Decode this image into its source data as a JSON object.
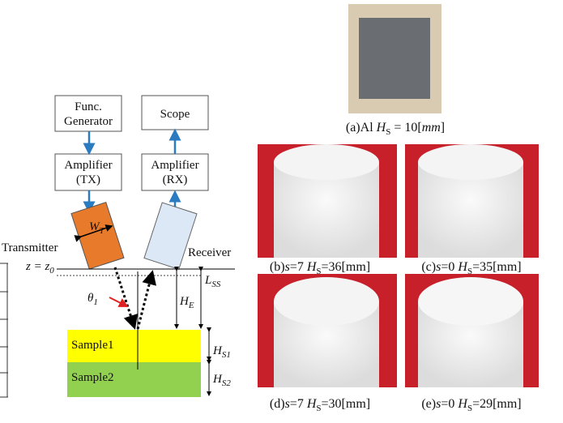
{
  "diagram": {
    "boxes": [
      [
        "Func.",
        "Generator"
      ],
      [
        "Scope"
      ],
      [
        "Amplifier",
        "(TX)"
      ],
      [
        "Amplifier",
        "(RX)"
      ]
    ],
    "transmitter_label": "Transmitter",
    "receiver_label": "Receiver",
    "width_label": {
      "base": "W",
      "sub": "T"
    },
    "plane_label": {
      "base": "z = z",
      "sub": "0"
    },
    "angle_label": {
      "base": "θ",
      "sub": "1"
    },
    "echo_height_label": {
      "base": "H",
      "sub": "E"
    },
    "standoff_label": {
      "base": "L",
      "sub": "SS"
    },
    "samples": [
      "Sample1",
      "Sample2"
    ],
    "sample_heights": [
      {
        "base": "H",
        "sub": "S1"
      },
      {
        "base": "H",
        "sub": "S2"
      }
    ]
  },
  "photos": {
    "captions": [
      [
        {
          "text": "(a)Al ",
          "style": "normal"
        },
        {
          "text": "H",
          "style": "italic"
        },
        {
          "text": "S",
          "style": "sub"
        },
        {
          "text": " = 10[",
          "style": "normal"
        },
        {
          "text": "mm",
          "style": "italic"
        },
        {
          "text": "]",
          "style": "normal"
        }
      ],
      [
        {
          "text": "(b)",
          "style": "normal"
        },
        {
          "text": "s",
          "style": "italic"
        },
        {
          "text": "=7 ",
          "style": "normal"
        },
        {
          "text": "H",
          "style": "italic"
        },
        {
          "text": "S",
          "style": "sub"
        },
        {
          "text": "=36[mm]",
          "style": "normal"
        }
      ],
      [
        {
          "text": "(c)",
          "style": "normal"
        },
        {
          "text": "s",
          "style": "italic"
        },
        {
          "text": "=0 ",
          "style": "normal"
        },
        {
          "text": "H",
          "style": "italic"
        },
        {
          "text": "S",
          "style": "sub"
        },
        {
          "text": "=35[mm]",
          "style": "normal"
        }
      ],
      [
        {
          "text": "(d)",
          "style": "normal"
        },
        {
          "text": "s",
          "style": "italic"
        },
        {
          "text": "=7 ",
          "style": "normal"
        },
        {
          "text": "H",
          "style": "italic"
        },
        {
          "text": "S",
          "style": "sub"
        },
        {
          "text": "=30[mm]",
          "style": "normal"
        }
      ],
      [
        {
          "text": "(e)",
          "style": "normal"
        },
        {
          "text": "s",
          "style": "italic"
        },
        {
          "text": "=0 ",
          "style": "normal"
        },
        {
          "text": "H",
          "style": "italic"
        },
        {
          "text": "S",
          "style": "sub"
        },
        {
          "text": "=29[mm]",
          "style": "normal"
        }
      ]
    ]
  }
}
